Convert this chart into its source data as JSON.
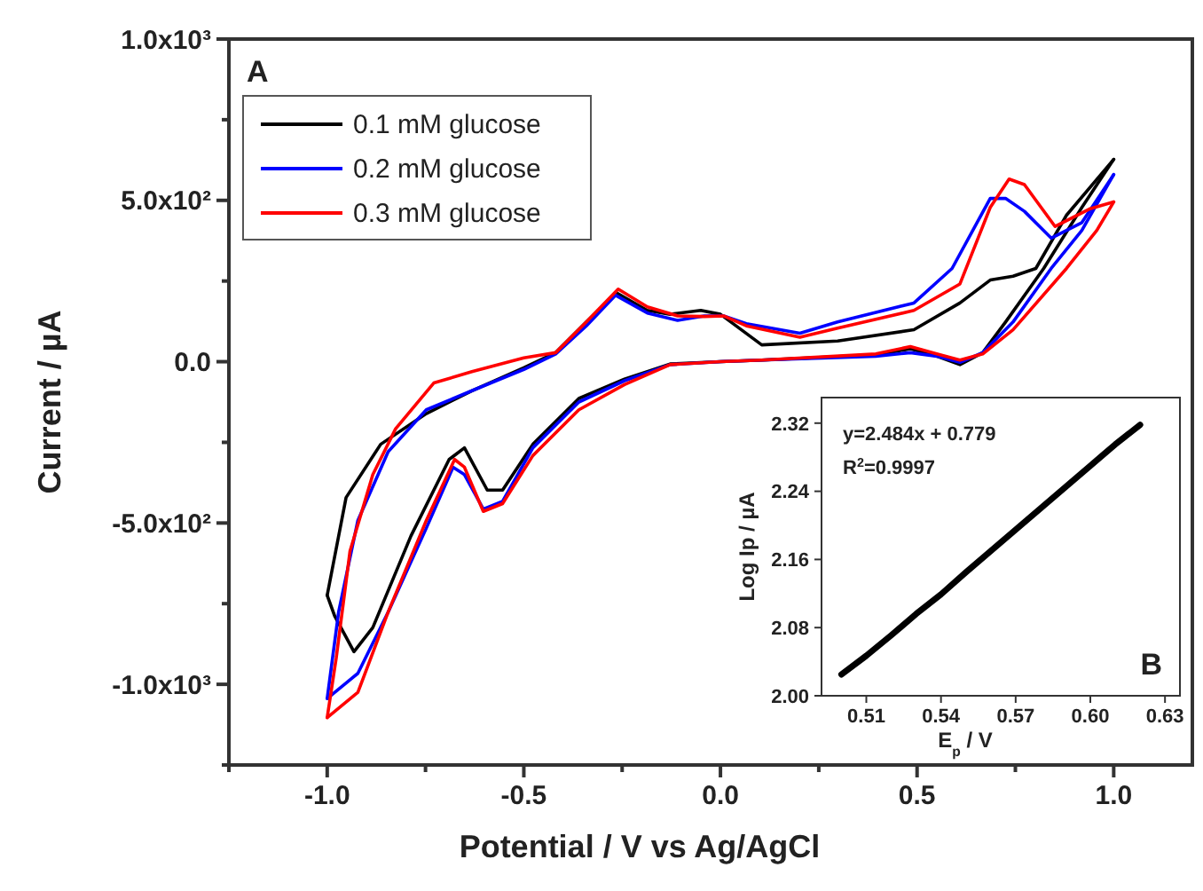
{
  "chart_data": [
    {
      "type": "line",
      "xlabel": "Potential / V vs Ag/AgCl",
      "ylabel": "Current / µA",
      "annotations": [
        "A"
      ],
      "legend": "top left",
      "line_style": "solid",
      "xlim": [
        -1.25,
        1.2
      ],
      "xticks": [
        {
          "value": -1.25,
          "label": null
        },
        {
          "value": -1,
          "label": "-1.0"
        },
        {
          "value": -0.75,
          "label": null
        },
        {
          "value": -0.5,
          "label": "-0.5"
        },
        {
          "value": -0.25,
          "label": null
        },
        {
          "value": 0,
          "label": "0.0"
        },
        {
          "value": 0.25,
          "label": null
        },
        {
          "value": 0.5,
          "label": "0.5"
        },
        {
          "value": 0.75,
          "label": null
        },
        {
          "value": 1,
          "label": "1.0"
        }
      ],
      "ylim": [
        -1250,
        1000
      ],
      "yticks": [
        {
          "value": -1250,
          "label": null
        },
        {
          "value": -1000,
          "label": "-1.0x10³"
        },
        {
          "value": -750,
          "label": null
        },
        {
          "value": -500,
          "label": "-5.0x10²"
        },
        {
          "value": -250,
          "label": null
        },
        {
          "value": 0,
          "label": "0.0"
        },
        {
          "value": 250,
          "label": null
        },
        {
          "value": 500,
          "label": "5.0x10²"
        },
        {
          "value": 750,
          "label": null
        },
        {
          "value": 1000,
          "label": "1.0x10³"
        }
      ],
      "series": [
        {
          "name": "0.1 mM glucose",
          "color": "#000000",
          "x": [
            -1.0,
            -0.952,
            -0.864,
            -0.748,
            -0.632,
            -0.5,
            -0.419,
            -0.341,
            -0.264,
            -0.186,
            -0.128,
            -0.05,
            0,
            0.105,
            0.298,
            0.492,
            0.609,
            0.686,
            0.744,
            0.802,
            0.88,
            1.0
          ],
          "values": [
            -724,
            -421,
            -256,
            -161,
            -90,
            -19,
            28,
            123,
            213,
            159,
            147,
            159,
            147,
            52,
            64,
            99,
            182,
            253,
            265,
            289,
            454,
            627
          ]
        },
        {
          "color": "#000000",
          "x": [
            1.0,
            0.919,
            0.822,
            0.725,
            0.667,
            0.609,
            0.55,
            0.483,
            0.395,
            0.105,
            0,
            -0.128,
            -0.244,
            -0.36,
            -0.477,
            -0.554,
            -0.593,
            -0.651,
            -0.69,
            -0.787,
            -0.884,
            -0.932,
            -0.981,
            -1.0
          ],
          "values": [
            627,
            478,
            289,
            123,
            28,
            -9,
            17,
            40,
            21,
            5,
            0,
            -7,
            -54,
            -114,
            -256,
            -398,
            -398,
            -267,
            -303,
            -540,
            -824,
            -899,
            -788,
            -724
          ]
        },
        {
          "name": "0.2 mM glucose",
          "color": "#0000ff",
          "x": [
            -1.0,
            -0.971,
            -0.922,
            -0.845,
            -0.748,
            -0.632,
            -0.5,
            -0.419,
            -0.341,
            -0.267,
            -0.186,
            -0.109,
            -0.041,
            0.008,
            0.066,
            0.202,
            0.298,
            0.492,
            0.589,
            0.686,
            0.725,
            0.773,
            0.841,
            0.919,
            1.0
          ],
          "values": [
            -1044,
            -776,
            -492,
            -279,
            -149,
            -90,
            -24,
            24,
            111,
            206,
            151,
            128,
            142,
            142,
            118,
            88,
            123,
            182,
            289,
            506,
            506,
            466,
            383,
            431,
            580
          ]
        },
        {
          "color": "#0000ff",
          "x": [
            1.0,
            0.919,
            0.841,
            0.744,
            0.667,
            0.609,
            0.55,
            0.483,
            0.395,
            0.105,
            0,
            -0.128,
            -0.244,
            -0.36,
            -0.477,
            -0.554,
            -0.603,
            -0.651,
            -0.68,
            -0.748,
            -0.845,
            -0.922,
            -1.0
          ],
          "values": [
            580,
            407,
            289,
            123,
            28,
            -2,
            17,
            28,
            17,
            5,
            0,
            -9,
            -59,
            -125,
            -267,
            -433,
            -457,
            -350,
            -327,
            -516,
            -776,
            -966,
            -1044
          ]
        },
        {
          "name": "0.3 mM glucose",
          "color": "#ff0000",
          "x": [
            -1.0,
            -0.977,
            -0.942,
            -0.884,
            -0.826,
            -0.729,
            -0.632,
            -0.5,
            -0.419,
            -0.341,
            -0.26,
            -0.186,
            -0.109,
            -0.041,
            0.008,
            0.066,
            0.202,
            0.298,
            0.492,
            0.609,
            0.686,
            0.734,
            0.773,
            0.851,
            0.938,
            1.0
          ],
          "values": [
            -1103,
            -918,
            -587,
            -350,
            -208,
            -66,
            -31,
            12,
            28,
            123,
            225,
            170,
            142,
            140,
            142,
            111,
            76,
            104,
            159,
            241,
            478,
            566,
            549,
            419,
            473,
            495
          ]
        },
        {
          "color": "#ff0000",
          "x": [
            1.0,
            0.957,
            0.88,
            0.744,
            0.667,
            0.609,
            0.55,
            0.483,
            0.395,
            0.105,
            0,
            -0.128,
            -0.244,
            -0.36,
            -0.477,
            -0.554,
            -0.603,
            -0.651,
            -0.676,
            -0.748,
            -0.845,
            -0.922,
            -1.0
          ],
          "values": [
            495,
            407,
            289,
            99,
            24,
            5,
            24,
            47,
            24,
            5,
            0,
            -9,
            -71,
            -149,
            -291,
            -440,
            -464,
            -327,
            -303,
            -492,
            -776,
            -1025,
            -1103
          ]
        }
      ]
    },
    {
      "type": "line",
      "xlabel": "E$_{p}$ / V",
      "ylabel": "Log Ip / µA",
      "annotations": [
        "y=2.484x + 0.779",
        "R$^{2}$=0.9997",
        "B"
      ],
      "line_style": "solid",
      "xlim": [
        0.492,
        0.636
      ],
      "xticks": [
        0.51,
        0.54,
        0.57,
        {
          "value": 0.6,
          "label": "0.60"
        },
        0.63
      ],
      "ylim": [
        2.0,
        2.35
      ],
      "yticks": [
        {
          "value": 2.0,
          "label": "2.00"
        },
        2.08,
        2.16,
        2.24,
        2.32
      ],
      "series": [
        {
          "color": "#000000",
          "x": [
            0.5,
            0.51,
            0.52,
            0.53,
            0.54,
            0.55,
            0.56,
            0.57,
            0.58,
            0.59,
            0.6,
            0.61,
            0.62
          ],
          "values": [
            2.025,
            2.047,
            2.071,
            2.096,
            2.119,
            2.145,
            2.17,
            2.195,
            2.22,
            2.245,
            2.27,
            2.295,
            2.318
          ]
        }
      ]
    }
  ]
}
